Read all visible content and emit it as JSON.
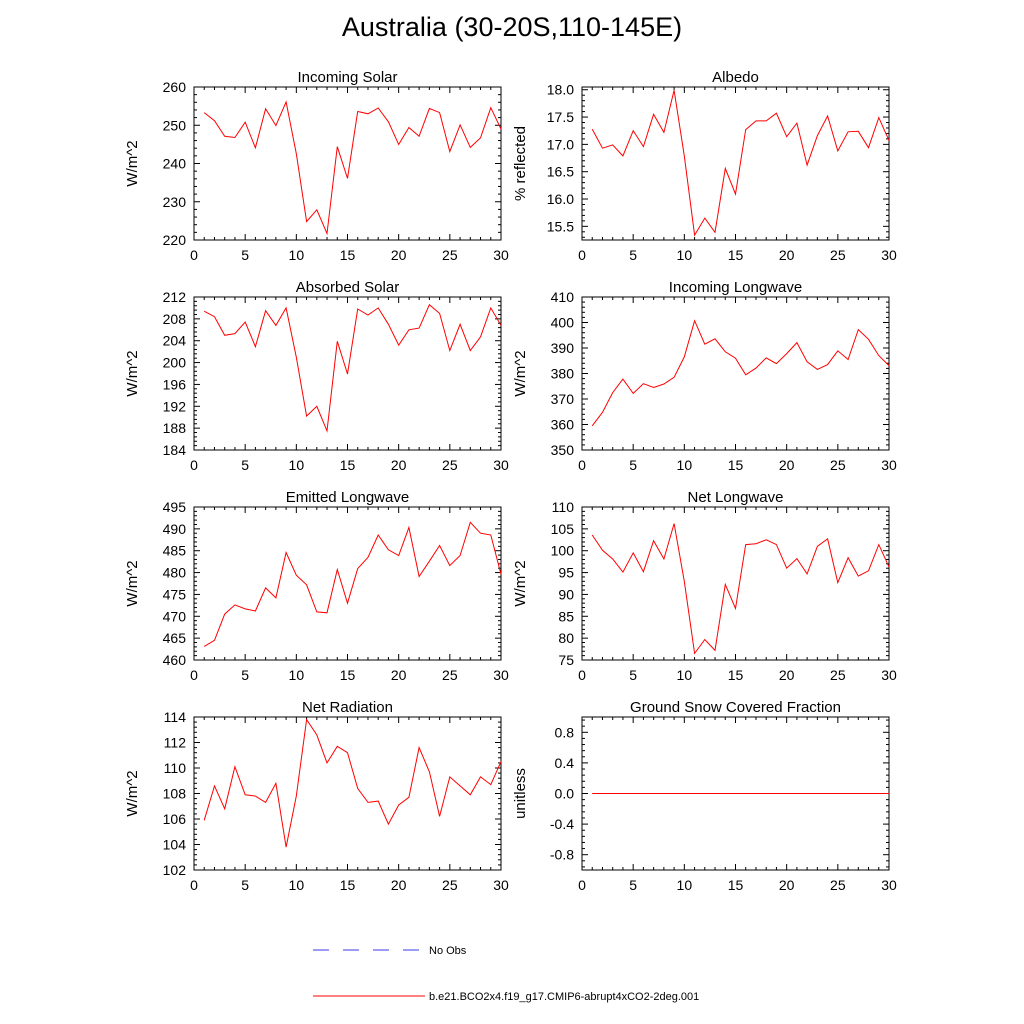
{
  "title": "Australia (30-20S,110-145E)",
  "colors": {
    "model": "#ff0000",
    "obs": "#3a3ae8",
    "axis": "#000000"
  },
  "legend": {
    "obs_label": "No Obs",
    "model_label": "b.e21.BCO2x4.f19_g17.CMIP6-abrupt4xCO2-2deg.001"
  },
  "chart_data": [
    {
      "type": "line",
      "title": "Incoming Solar",
      "xlabel": "",
      "ylabel": "W/m^2",
      "xlim": [
        0,
        30
      ],
      "ylim": [
        220,
        260
      ],
      "yticks": [
        220,
        230,
        240,
        250,
        260
      ],
      "xticks": [
        0,
        5,
        10,
        15,
        20,
        25,
        30
      ],
      "x": [
        1,
        2,
        3,
        4,
        5,
        6,
        7,
        8,
        9,
        10,
        11,
        12,
        13,
        14,
        15,
        16,
        17,
        18,
        19,
        20,
        21,
        22,
        23,
        24,
        25,
        26,
        27,
        28,
        29,
        30
      ],
      "series": [
        {
          "values": [
            253.3,
            251.2,
            247.1,
            246.8,
            250.8,
            244.1,
            254.3,
            249.9,
            256.1,
            242.6,
            224.8,
            227.9,
            221.7,
            244.4,
            236.1,
            253.6,
            253.0,
            254.5,
            250.9,
            245.0,
            249.4,
            247.1,
            254.4,
            253.3,
            243.1,
            250.1,
            244.2,
            246.7,
            254.6,
            249.0
          ]
        }
      ]
    },
    {
      "type": "line",
      "title": "Albedo",
      "xlabel": "",
      "ylabel": "% reflected",
      "xlim": [
        0,
        30
      ],
      "ylim": [
        15.25,
        18.05
      ],
      "yticks": [
        15.5,
        16.0,
        16.5,
        17.0,
        17.5,
        18.0
      ],
      "xticks": [
        0,
        5,
        10,
        15,
        20,
        25,
        30
      ],
      "x": [
        1,
        2,
        3,
        4,
        5,
        6,
        7,
        8,
        9,
        10,
        11,
        12,
        13,
        14,
        15,
        16,
        17,
        18,
        19,
        20,
        21,
        22,
        23,
        24,
        25,
        26,
        27,
        28,
        29,
        30
      ],
      "series": [
        {
          "values": [
            17.28,
            16.93,
            16.99,
            16.79,
            17.25,
            16.96,
            17.55,
            17.22,
            17.99,
            16.79,
            15.34,
            15.65,
            15.39,
            16.56,
            16.09,
            17.27,
            17.43,
            17.43,
            17.57,
            17.14,
            17.39,
            16.62,
            17.16,
            17.52,
            16.88,
            17.23,
            17.24,
            16.94,
            17.49,
            17.07
          ]
        }
      ]
    },
    {
      "type": "line",
      "title": "Absorbed Solar",
      "xlabel": "",
      "ylabel": "W/m^2",
      "xlim": [
        0,
        30
      ],
      "ylim": [
        184,
        212
      ],
      "yticks": [
        184,
        188,
        192,
        196,
        200,
        204,
        208,
        212
      ],
      "xticks": [
        0,
        5,
        10,
        15,
        20,
        25,
        30
      ],
      "x": [
        1,
        2,
        3,
        4,
        5,
        6,
        7,
        8,
        9,
        10,
        11,
        12,
        13,
        14,
        15,
        16,
        17,
        18,
        19,
        20,
        21,
        22,
        23,
        24,
        25,
        26,
        27,
        28,
        29,
        30
      ],
      "series": [
        {
          "values": [
            209.4,
            208.4,
            205.0,
            205.3,
            207.4,
            202.9,
            209.5,
            206.8,
            210.0,
            201.0,
            190.2,
            192.0,
            187.5,
            203.9,
            197.9,
            209.8,
            208.7,
            210.0,
            207.0,
            203.2,
            206.0,
            206.3,
            210.6,
            209.0,
            202.2,
            207.0,
            202.2,
            204.7,
            210.0,
            206.8
          ]
        }
      ]
    },
    {
      "type": "line",
      "title": "Incoming Longwave",
      "xlabel": "",
      "ylabel": "W/m^2",
      "xlim": [
        0,
        30
      ],
      "ylim": [
        350,
        410
      ],
      "yticks": [
        350,
        360,
        370,
        380,
        390,
        400,
        410
      ],
      "xticks": [
        0,
        5,
        10,
        15,
        20,
        25,
        30
      ],
      "x": [
        1,
        2,
        3,
        4,
        5,
        6,
        7,
        8,
        9,
        10,
        11,
        12,
        13,
        14,
        15,
        16,
        17,
        18,
        19,
        20,
        21,
        22,
        23,
        24,
        25,
        26,
        27,
        28,
        29,
        30
      ],
      "series": [
        {
          "values": [
            359.5,
            364.8,
            372.5,
            377.8,
            372.2,
            376.0,
            374.5,
            375.9,
            378.5,
            386.5,
            400.7,
            391.5,
            393.6,
            388.5,
            386.0,
            379.5,
            382.1,
            386.1,
            383.9,
            387.8,
            392.1,
            384.6,
            381.6,
            383.5,
            388.9,
            385.5,
            397.2,
            393.4,
            387.0,
            383.1
          ]
        }
      ]
    },
    {
      "type": "line",
      "title": "Emitted Longwave",
      "xlabel": "",
      "ylabel": "W/m^2",
      "xlim": [
        0,
        30
      ],
      "ylim": [
        460,
        495
      ],
      "yticks": [
        460,
        465,
        470,
        475,
        480,
        485,
        490,
        495
      ],
      "xticks": [
        0,
        5,
        10,
        15,
        20,
        25,
        30
      ],
      "x": [
        1,
        2,
        3,
        4,
        5,
        6,
        7,
        8,
        9,
        10,
        11,
        12,
        13,
        14,
        15,
        16,
        17,
        18,
        19,
        20,
        21,
        22,
        23,
        24,
        25,
        26,
        27,
        28,
        29,
        30
      ],
      "series": [
        {
          "values": [
            463.1,
            464.5,
            470.5,
            472.6,
            471.7,
            471.2,
            476.5,
            474.2,
            484.6,
            479.4,
            477.2,
            471.0,
            470.8,
            480.7,
            473.0,
            480.9,
            483.5,
            488.6,
            485.2,
            483.9,
            490.3,
            479.1,
            482.6,
            486.2,
            481.6,
            483.9,
            491.5,
            489.0,
            488.6,
            479.6
          ]
        }
      ]
    },
    {
      "type": "line",
      "title": "Net Longwave",
      "xlabel": "",
      "ylabel": "W/m^2",
      "xlim": [
        0,
        30
      ],
      "ylim": [
        75,
        110
      ],
      "yticks": [
        75,
        80,
        85,
        90,
        95,
        100,
        105,
        110
      ],
      "xticks": [
        0,
        5,
        10,
        15,
        20,
        25,
        30
      ],
      "x": [
        1,
        2,
        3,
        4,
        5,
        6,
        7,
        8,
        9,
        10,
        11,
        12,
        13,
        14,
        15,
        16,
        17,
        18,
        19,
        20,
        21,
        22,
        23,
        24,
        25,
        26,
        27,
        28,
        29,
        30
      ],
      "series": [
        {
          "values": [
            103.6,
            100.1,
            98.1,
            95.1,
            99.5,
            95.2,
            102.3,
            98.1,
            106.2,
            93.0,
            76.5,
            79.7,
            77.2,
            92.3,
            86.8,
            101.4,
            101.6,
            102.5,
            101.4,
            96.0,
            98.2,
            94.7,
            101.0,
            102.7,
            92.7,
            98.4,
            94.2,
            95.4,
            101.4,
            96.3
          ]
        }
      ]
    },
    {
      "type": "line",
      "title": "Net Radiation",
      "xlabel": "",
      "ylabel": "W/m^2",
      "xlim": [
        0,
        30
      ],
      "ylim": [
        102,
        114
      ],
      "yticks": [
        102,
        104,
        106,
        108,
        110,
        112,
        114
      ],
      "xticks": [
        0,
        5,
        10,
        15,
        20,
        25,
        30
      ],
      "x": [
        1,
        2,
        3,
        4,
        5,
        6,
        7,
        8,
        9,
        10,
        11,
        12,
        13,
        14,
        15,
        16,
        17,
        18,
        19,
        20,
        21,
        22,
        23,
        24,
        25,
        26,
        27,
        28,
        29,
        30
      ],
      "series": [
        {
          "values": [
            105.9,
            108.6,
            106.8,
            110.1,
            107.9,
            107.8,
            107.3,
            108.8,
            103.8,
            107.8,
            113.8,
            112.6,
            110.4,
            111.7,
            111.2,
            108.4,
            107.3,
            107.4,
            105.6,
            107.1,
            107.7,
            111.6,
            109.7,
            106.2,
            109.3,
            108.6,
            107.9,
            109.3,
            108.7,
            110.5
          ]
        }
      ]
    },
    {
      "type": "line",
      "title": "Ground Snow Covered Fraction",
      "xlabel": "",
      "ylabel": "unitless",
      "xlim": [
        0,
        30
      ],
      "ylim": [
        -1.0,
        1.0
      ],
      "yticks": [
        -0.8,
        -0.4,
        0.0,
        0.4,
        0.8
      ],
      "xticks": [
        0,
        5,
        10,
        15,
        20,
        25,
        30
      ],
      "x": [
        1,
        2,
        3,
        4,
        5,
        6,
        7,
        8,
        9,
        10,
        11,
        12,
        13,
        14,
        15,
        16,
        17,
        18,
        19,
        20,
        21,
        22,
        23,
        24,
        25,
        26,
        27,
        28,
        29,
        30
      ],
      "series": [
        {
          "values": [
            0,
            0,
            0,
            0,
            0,
            0,
            0,
            0,
            0,
            0,
            0,
            0,
            0,
            0,
            0,
            0,
            0,
            0,
            0,
            0,
            0,
            0,
            0,
            0,
            0,
            0,
            0,
            0,
            0,
            0
          ]
        }
      ]
    }
  ]
}
